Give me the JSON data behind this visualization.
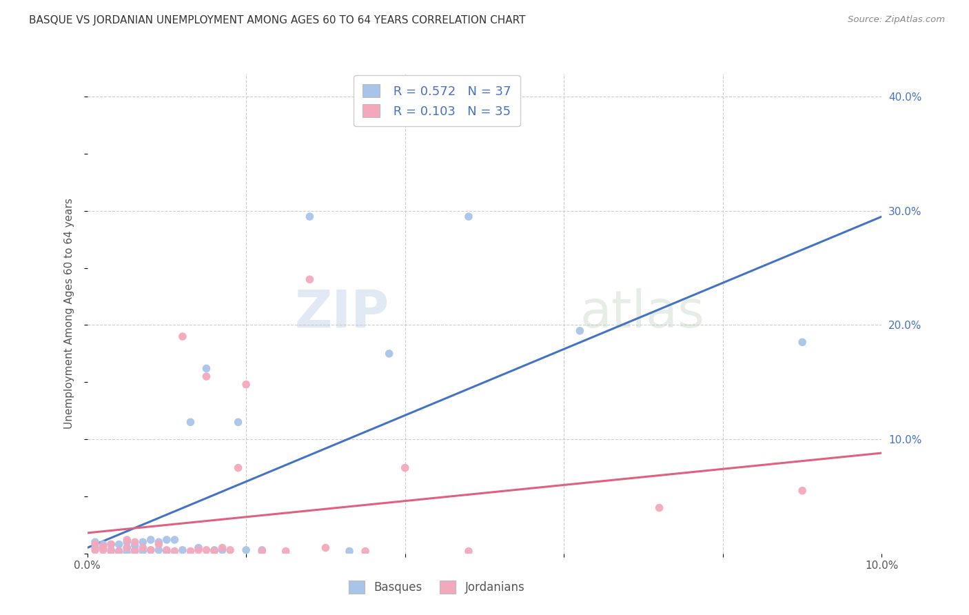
{
  "title": "BASQUE VS JORDANIAN UNEMPLOYMENT AMONG AGES 60 TO 64 YEARS CORRELATION CHART",
  "source": "Source: ZipAtlas.com",
  "ylabel": "Unemployment Among Ages 60 to 64 years",
  "xlim": [
    0.0,
    0.1
  ],
  "ylim": [
    0.0,
    0.42
  ],
  "basque_R": 0.572,
  "basque_N": 37,
  "jordanian_R": 0.103,
  "jordanian_N": 35,
  "basque_color": "#a8c4e8",
  "jordanian_color": "#f4a8bc",
  "basque_line_color": "#4472c4",
  "jordanian_line_color": "#e06080",
  "basque_x": [
    0.001,
    0.001,
    0.002,
    0.002,
    0.003,
    0.003,
    0.004,
    0.004,
    0.005,
    0.005,
    0.005,
    0.006,
    0.006,
    0.007,
    0.007,
    0.008,
    0.008,
    0.009,
    0.009,
    0.01,
    0.01,
    0.011,
    0.012,
    0.013,
    0.014,
    0.015,
    0.016,
    0.017,
    0.019,
    0.02,
    0.022,
    0.028,
    0.033,
    0.038,
    0.048,
    0.062,
    0.09
  ],
  "basque_y": [
    0.005,
    0.01,
    0.005,
    0.008,
    0.003,
    0.008,
    0.002,
    0.008,
    0.001,
    0.005,
    0.01,
    0.003,
    0.007,
    0.002,
    0.01,
    0.003,
    0.012,
    0.003,
    0.01,
    0.002,
    0.012,
    0.012,
    0.003,
    0.115,
    0.005,
    0.162,
    0.003,
    0.003,
    0.115,
    0.003,
    0.003,
    0.295,
    0.002,
    0.175,
    0.295,
    0.195,
    0.185
  ],
  "jordanian_x": [
    0.001,
    0.001,
    0.002,
    0.002,
    0.003,
    0.003,
    0.004,
    0.005,
    0.005,
    0.006,
    0.006,
    0.007,
    0.008,
    0.009,
    0.01,
    0.011,
    0.012,
    0.013,
    0.014,
    0.015,
    0.015,
    0.016,
    0.017,
    0.018,
    0.019,
    0.02,
    0.022,
    0.025,
    0.028,
    0.03,
    0.035,
    0.04,
    0.048,
    0.072,
    0.09
  ],
  "jordanian_y": [
    0.003,
    0.008,
    0.003,
    0.006,
    0.002,
    0.008,
    0.002,
    0.005,
    0.012,
    0.002,
    0.01,
    0.005,
    0.003,
    0.008,
    0.003,
    0.002,
    0.19,
    0.002,
    0.003,
    0.155,
    0.003,
    0.002,
    0.005,
    0.003,
    0.075,
    0.148,
    0.002,
    0.002,
    0.24,
    0.005,
    0.002,
    0.075,
    0.002,
    0.04,
    0.055
  ],
  "basque_trendline_x": [
    0.0,
    0.1
  ],
  "basque_trendline_y": [
    0.005,
    0.295
  ],
  "jordanian_trendline_x": [
    0.0,
    0.1
  ],
  "jordanian_trendline_y": [
    0.018,
    0.088
  ]
}
